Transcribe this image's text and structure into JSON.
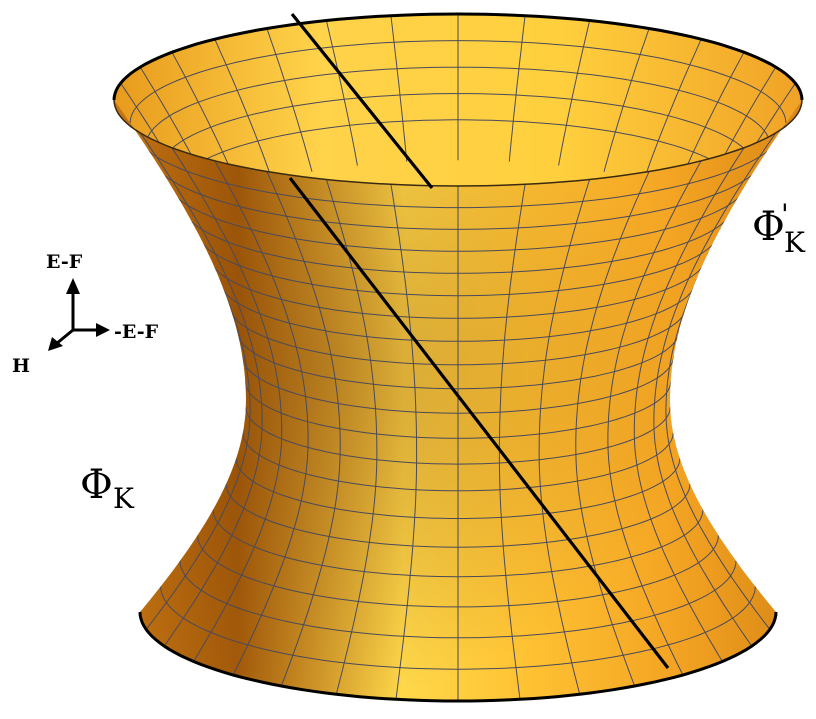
{
  "diagram": {
    "colors": {
      "surface_light": "#ffe066",
      "surface_mid": "#f7b02a",
      "surface_dark": "#a85f0c",
      "inner_light": "#ffd34a",
      "grid": "#4a4a5a",
      "ruling_line": "#000000"
    },
    "axes": {
      "up": "E-F",
      "right": "-E-F",
      "down_left": "H"
    },
    "labels": {
      "phi_right_base": "Φ",
      "phi_right_prime": "'",
      "phi_right_sub": "K",
      "phi_left_base": "Φ",
      "phi_left_sub": "K"
    }
  }
}
